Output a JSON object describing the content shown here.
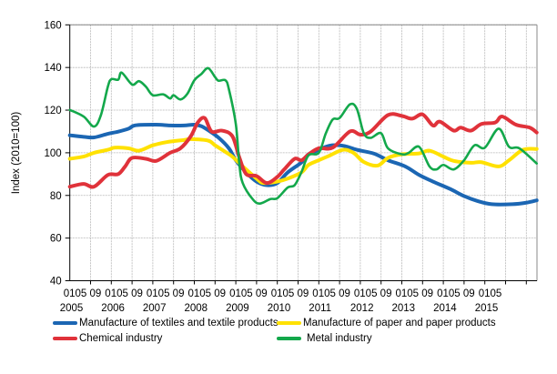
{
  "chart_data": {
    "type": "line",
    "title": "",
    "xlabel": "",
    "ylabel": "Index (2010=100)",
    "ylim": [
      40,
      160
    ],
    "yticks": [
      40,
      60,
      80,
      100,
      120,
      140,
      160
    ],
    "grid": true,
    "legend_position": "bottom",
    "x_tick_labels": [
      {
        "months": "0105 09",
        "year": "2005"
      },
      {
        "months": "0105 09",
        "year": "2006"
      },
      {
        "months": "0105 09",
        "year": "2007"
      },
      {
        "months": "0105 09",
        "year": "2008"
      },
      {
        "months": "0105 09",
        "year": "2009"
      },
      {
        "months": "0105 09",
        "year": "2010"
      },
      {
        "months": "0105 09",
        "year": "2011"
      },
      {
        "months": "0105 09",
        "year": "2012"
      },
      {
        "months": "0105 09",
        "year": "2013"
      },
      {
        "months": "0105 09",
        "year": "2014"
      },
      {
        "months": "0105",
        "year": "2015"
      }
    ],
    "series": [
      {
        "name": "Manufacture of textiles and textile products",
        "color": "#1b66b3",
        "points": [
          [
            "2005-01",
            108.2
          ],
          [
            "2005-05",
            107.5
          ],
          [
            "2005-08",
            107.2
          ],
          [
            "2005-12",
            108.9
          ],
          [
            "2006-03",
            109.9
          ],
          [
            "2006-06",
            111.3
          ],
          [
            "2006-08",
            112.9
          ],
          [
            "2007-02",
            113.2
          ],
          [
            "2007-06",
            112.8
          ],
          [
            "2007-10",
            112.8
          ],
          [
            "2008-01",
            113.2
          ],
          [
            "2008-03",
            112.5
          ],
          [
            "2008-05",
            110.6
          ],
          [
            "2008-08",
            107.1
          ],
          [
            "2008-11",
            102.1
          ],
          [
            "2009-01",
            96.5
          ],
          [
            "2009-04",
            90.8
          ],
          [
            "2009-07",
            86.5
          ],
          [
            "2009-10",
            84.8
          ],
          [
            "2010-01",
            85.8
          ],
          [
            "2010-04",
            90.8
          ],
          [
            "2010-08",
            95.5
          ],
          [
            "2010-10",
            99.3
          ],
          [
            "2010-12",
            100.7
          ],
          [
            "2011-04",
            103.3
          ],
          [
            "2011-08",
            103.3
          ],
          [
            "2011-12",
            101.4
          ],
          [
            "2012-05",
            99.6
          ],
          [
            "2012-09",
            96.5
          ],
          [
            "2013-02",
            93.6
          ],
          [
            "2013-06",
            89.6
          ],
          [
            "2013-10",
            86.5
          ],
          [
            "2014-03",
            83.0
          ],
          [
            "2014-07",
            79.7
          ],
          [
            "2014-11",
            77.3
          ],
          [
            "2015-03",
            75.9
          ],
          [
            "2015-09",
            75.9
          ],
          [
            "2016-01",
            76.6
          ],
          [
            "2016-04",
            77.7
          ]
        ]
      },
      {
        "name": "Manufacture of paper and paper products",
        "color": "#ffe100",
        "points": [
          [
            "2005-01",
            97.2
          ],
          [
            "2005-05",
            98.2
          ],
          [
            "2005-08",
            100.0
          ],
          [
            "2005-12",
            101.4
          ],
          [
            "2006-02",
            102.4
          ],
          [
            "2006-06",
            102.1
          ],
          [
            "2006-09",
            101.0
          ],
          [
            "2007-01",
            103.5
          ],
          [
            "2007-05",
            105.0
          ],
          [
            "2007-10",
            106.0
          ],
          [
            "2007-12",
            106.4
          ],
          [
            "2008-05",
            105.7
          ],
          [
            "2008-07",
            103.5
          ],
          [
            "2008-10",
            100.4
          ],
          [
            "2008-12",
            98.2
          ],
          [
            "2009-03",
            93.6
          ],
          [
            "2009-07",
            87.9
          ],
          [
            "2009-09",
            85.8
          ],
          [
            "2010-01",
            86.5
          ],
          [
            "2010-04",
            87.9
          ],
          [
            "2010-08",
            90.8
          ],
          [
            "2010-10",
            94.3
          ],
          [
            "2011-01",
            96.5
          ],
          [
            "2011-04",
            98.6
          ],
          [
            "2011-08",
            101.4
          ],
          [
            "2011-11",
            100.0
          ],
          [
            "2012-02",
            95.7
          ],
          [
            "2012-06",
            94.0
          ],
          [
            "2012-09",
            97.6
          ],
          [
            "2013-01",
            99.3
          ],
          [
            "2013-06",
            99.7
          ],
          [
            "2013-09",
            101.0
          ],
          [
            "2014-01",
            98.2
          ],
          [
            "2014-04",
            96.2
          ],
          [
            "2014-09",
            95.3
          ],
          [
            "2014-12",
            95.6
          ],
          [
            "2015-05",
            93.6
          ],
          [
            "2015-08",
            96.5
          ],
          [
            "2015-12",
            101.4
          ],
          [
            "2016-04",
            101.8
          ]
        ]
      },
      {
        "name": "Chemical industry",
        "color": "#e0323a",
        "points": [
          [
            "2005-01",
            84.1
          ],
          [
            "2005-05",
            85.4
          ],
          [
            "2005-08",
            84.1
          ],
          [
            "2005-12",
            89.6
          ],
          [
            "2006-03",
            90.0
          ],
          [
            "2006-05",
            93.6
          ],
          [
            "2006-07",
            97.6
          ],
          [
            "2006-11",
            97.2
          ],
          [
            "2007-02",
            96.2
          ],
          [
            "2007-06",
            100.0
          ],
          [
            "2007-09",
            102.1
          ],
          [
            "2007-12",
            107.8
          ],
          [
            "2008-02",
            114.2
          ],
          [
            "2008-04",
            116.3
          ],
          [
            "2008-06",
            110.0
          ],
          [
            "2008-09",
            110.4
          ],
          [
            "2008-12",
            107.8
          ],
          [
            "2009-02",
            97.9
          ],
          [
            "2009-04",
            90.0
          ],
          [
            "2009-07",
            89.1
          ],
          [
            "2009-10",
            85.8
          ],
          [
            "2010-01",
            88.7
          ],
          [
            "2010-03",
            92.2
          ],
          [
            "2010-06",
            97.2
          ],
          [
            "2010-08",
            96.5
          ],
          [
            "2010-10",
            99.2
          ],
          [
            "2011-01",
            102.1
          ],
          [
            "2011-05",
            102.4
          ],
          [
            "2011-10",
            110.0
          ],
          [
            "2012-01",
            108.5
          ],
          [
            "2012-04",
            110.0
          ],
          [
            "2012-09",
            117.7
          ],
          [
            "2013-01",
            117.3
          ],
          [
            "2013-04",
            116.0
          ],
          [
            "2013-07",
            118.0
          ],
          [
            "2013-10",
            112.8
          ],
          [
            "2013-12",
            114.6
          ],
          [
            "2014-04",
            110.4
          ],
          [
            "2014-06",
            111.8
          ],
          [
            "2014-09",
            110.4
          ],
          [
            "2014-12",
            113.5
          ],
          [
            "2015-04",
            114.2
          ],
          [
            "2015-06",
            117.0
          ],
          [
            "2015-10",
            113.2
          ],
          [
            "2016-02",
            111.8
          ],
          [
            "2016-04",
            109.5
          ]
        ]
      },
      {
        "name": "Metal industry",
        "color": "#13a84b",
        "points": [
          [
            "2005-01",
            120.1
          ],
          [
            "2005-05",
            117.0
          ],
          [
            "2005-08",
            112.3
          ],
          [
            "2005-10",
            117.7
          ],
          [
            "2005-12",
            131.0
          ],
          [
            "2006-01",
            134.5
          ],
          [
            "2006-03",
            134.3
          ],
          [
            "2006-04",
            137.6
          ],
          [
            "2006-07",
            132.0
          ],
          [
            "2006-09",
            133.6
          ],
          [
            "2006-11",
            131.0
          ],
          [
            "2007-01",
            127.0
          ],
          [
            "2007-04",
            127.4
          ],
          [
            "2007-06",
            125.5
          ],
          [
            "2007-07",
            127.0
          ],
          [
            "2007-09",
            125.0
          ],
          [
            "2007-11",
            127.7
          ],
          [
            "2008-01",
            134.0
          ],
          [
            "2008-03",
            136.9
          ],
          [
            "2008-05",
            139.7
          ],
          [
            "2008-07",
            135.5
          ],
          [
            "2008-08",
            133.8
          ],
          [
            "2008-10",
            134.0
          ],
          [
            "2008-11",
            129.8
          ],
          [
            "2009-01",
            113.5
          ],
          [
            "2009-02",
            95.0
          ],
          [
            "2009-03",
            85.8
          ],
          [
            "2009-06",
            78.0
          ],
          [
            "2009-08",
            76.2
          ],
          [
            "2009-11",
            78.3
          ],
          [
            "2010-01",
            78.7
          ],
          [
            "2010-04",
            83.7
          ],
          [
            "2010-06",
            84.8
          ],
          [
            "2010-08",
            91.0
          ],
          [
            "2010-10",
            98.8
          ],
          [
            "2011-01",
            100.0
          ],
          [
            "2011-03",
            109.0
          ],
          [
            "2011-05",
            115.6
          ],
          [
            "2011-07",
            116.3
          ],
          [
            "2011-10",
            122.7
          ],
          [
            "2011-12",
            120.6
          ],
          [
            "2012-02",
            109.2
          ],
          [
            "2012-04",
            107.0
          ],
          [
            "2012-07",
            109.2
          ],
          [
            "2012-09",
            102.1
          ],
          [
            "2013-01",
            99.3
          ],
          [
            "2013-03",
            100.0
          ],
          [
            "2013-06",
            102.8
          ],
          [
            "2013-09",
            93.6
          ],
          [
            "2013-11",
            92.2
          ],
          [
            "2014-01",
            94.3
          ],
          [
            "2014-04",
            92.2
          ],
          [
            "2014-07",
            96.5
          ],
          [
            "2014-10",
            103.5
          ],
          [
            "2015-01",
            102.4
          ],
          [
            "2015-05",
            111.3
          ],
          [
            "2015-08",
            102.8
          ],
          [
            "2015-11",
            102.1
          ],
          [
            "2016-04",
            95.0
          ]
        ]
      }
    ]
  }
}
